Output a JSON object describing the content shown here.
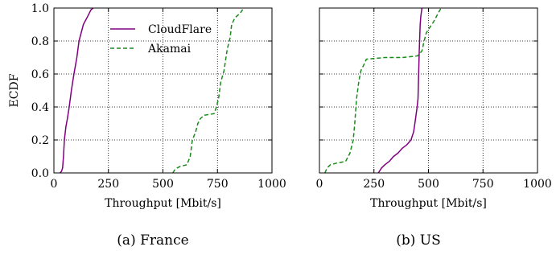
{
  "chart_data": [
    {
      "type": "line",
      "caption": "(a) France",
      "xlabel": "Throughput [Mbit/s]",
      "ylabel": "ECDF",
      "xlim": [
        0,
        1000
      ],
      "ylim": [
        0,
        1
      ],
      "xticks": [
        "0",
        "250",
        "500",
        "750",
        "1000"
      ],
      "yticks": [
        "0.0",
        "0.2",
        "0.4",
        "0.6",
        "0.8",
        "1.0"
      ],
      "grid": true,
      "legend": "top-center",
      "series": [
        {
          "name": "CloudFlare",
          "color": "#800080",
          "style": "solid",
          "points": [
            [
              28,
              0
            ],
            [
              35,
              0.01
            ],
            [
              40,
              0.03
            ],
            [
              44,
              0.1
            ],
            [
              48,
              0.2
            ],
            [
              55,
              0.28
            ],
            [
              62,
              0.33
            ],
            [
              70,
              0.4
            ],
            [
              80,
              0.5
            ],
            [
              92,
              0.6
            ],
            [
              105,
              0.7
            ],
            [
              115,
              0.8
            ],
            [
              135,
              0.9
            ],
            [
              155,
              0.95
            ],
            [
              170,
              0.99
            ],
            [
              180,
              1.0
            ]
          ]
        },
        {
          "name": "Akamai",
          "color": "#1a8a1a",
          "style": "dashed",
          "points": [
            [
              545,
              0
            ],
            [
              555,
              0.02
            ],
            [
              565,
              0.03
            ],
            [
              580,
              0.04
            ],
            [
              610,
              0.05
            ],
            [
              625,
              0.1
            ],
            [
              635,
              0.2
            ],
            [
              650,
              0.25
            ],
            [
              660,
              0.3
            ],
            [
              672,
              0.33
            ],
            [
              690,
              0.35
            ],
            [
              735,
              0.36
            ],
            [
              745,
              0.4
            ],
            [
              755,
              0.45
            ],
            [
              765,
              0.55
            ],
            [
              780,
              0.62
            ],
            [
              795,
              0.75
            ],
            [
              808,
              0.82
            ],
            [
              815,
              0.9
            ],
            [
              830,
              0.94
            ],
            [
              855,
              0.97
            ],
            [
              870,
              1.0
            ]
          ]
        }
      ]
    },
    {
      "type": "line",
      "caption": "(b) US",
      "xlabel": "Throughput [Mbit/s]",
      "ylabel": "",
      "xlim": [
        0,
        1000
      ],
      "ylim": [
        0,
        1
      ],
      "xticks": [
        "0",
        "250",
        "500",
        "750",
        "1000"
      ],
      "yticks": [],
      "grid": true,
      "legend": "",
      "series": [
        {
          "name": "CloudFlare",
          "color": "#800080",
          "style": "solid",
          "points": [
            [
              270,
              0
            ],
            [
              285,
              0.03
            ],
            [
              300,
              0.05
            ],
            [
              320,
              0.07
            ],
            [
              340,
              0.1
            ],
            [
              360,
              0.12
            ],
            [
              380,
              0.15
            ],
            [
              400,
              0.17
            ],
            [
              420,
              0.2
            ],
            [
              432,
              0.25
            ],
            [
              440,
              0.32
            ],
            [
              448,
              0.4
            ],
            [
              452,
              0.45
            ],
            [
              455,
              0.6
            ],
            [
              458,
              0.75
            ],
            [
              462,
              0.9
            ],
            [
              465,
              0.95
            ],
            [
              470,
              1.0
            ]
          ]
        },
        {
          "name": "Akamai",
          "color": "#1a8a1a",
          "style": "dashed",
          "points": [
            [
              25,
              0
            ],
            [
              35,
              0.03
            ],
            [
              50,
              0.05
            ],
            [
              80,
              0.06
            ],
            [
              120,
              0.07
            ],
            [
              140,
              0.12
            ],
            [
              155,
              0.2
            ],
            [
              162,
              0.3
            ],
            [
              170,
              0.45
            ],
            [
              180,
              0.55
            ],
            [
              190,
              0.62
            ],
            [
              205,
              0.66
            ],
            [
              215,
              0.69
            ],
            [
              300,
              0.7
            ],
            [
              380,
              0.7
            ],
            [
              450,
              0.71
            ],
            [
              470,
              0.74
            ],
            [
              480,
              0.8
            ],
            [
              490,
              0.85
            ],
            [
              505,
              0.88
            ],
            [
              525,
              0.92
            ],
            [
              545,
              0.97
            ],
            [
              558,
              1.0
            ]
          ]
        }
      ]
    }
  ]
}
